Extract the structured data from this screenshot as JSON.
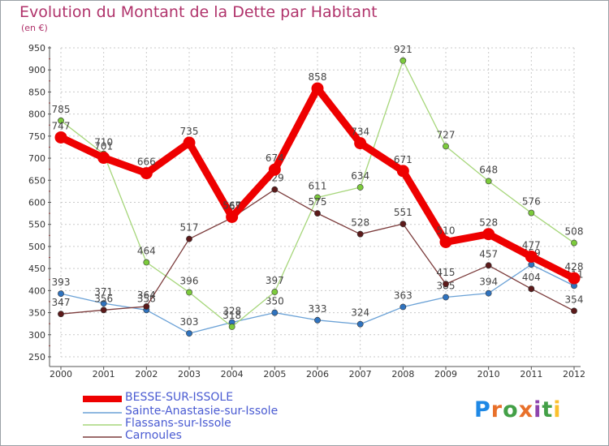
{
  "chart_data": {
    "type": "line",
    "title": "Evolution du Montant de la Dette par Habitant",
    "subtitle": "(en €)",
    "x": [
      "2000",
      "2001",
      "2002",
      "2003",
      "2004",
      "2005",
      "2006",
      "2007",
      "2008",
      "2009",
      "2010",
      "2011",
      "2012"
    ],
    "ylim": [
      250,
      950
    ],
    "yticks": [
      250,
      300,
      350,
      400,
      450,
      500,
      550,
      600,
      650,
      700,
      750,
      800,
      850,
      900,
      950
    ],
    "grid": true,
    "legend_position": "bottom-left",
    "series": [
      {
        "name": "Sainte-Anastasie-sur-Issole",
        "color": "#6aa1d6",
        "marker_color": "#2f73bf",
        "values": [
          393,
          371,
          356,
          303,
          328,
          350,
          333,
          324,
          363,
          385,
          394,
          459,
          411
        ]
      },
      {
        "name": "Flassans-sur-Issole",
        "color": "#a6d67a",
        "marker_color": "#7ccb3c",
        "values": [
          785,
          710,
          464,
          396,
          318,
          397,
          611,
          634,
          921,
          727,
          648,
          576,
          508
        ]
      },
      {
        "name": "Carnoules",
        "color": "#7b3b3b",
        "marker_color": "#5c1a1a",
        "values": [
          347,
          356,
          364,
          517,
          565,
          629,
          575,
          528,
          551,
          415,
          457,
          404,
          354
        ]
      },
      {
        "name": "BESSE-SUR-ISSOLE",
        "color": "#ee0000",
        "marker_color": "#ee0000",
        "values": [
          747,
          701,
          666,
          735,
          567,
          674,
          858,
          734,
          671,
          510,
          528,
          477,
          428
        ]
      }
    ]
  },
  "legend": [
    {
      "label": "BESSE-SUR-ISSOLE",
      "color": "#ee0000"
    },
    {
      "label": "Sainte-Anastasie-sur-Issole",
      "color": "#6aa1d6"
    },
    {
      "label": "Flassans-sur-Issole",
      "color": "#a6d67a"
    },
    {
      "label": "Carnoules",
      "color": "#7b3b3b"
    }
  ],
  "logo": {
    "text": "Proxiti",
    "letters": [
      "P",
      "r",
      "o",
      "x",
      "i",
      "t",
      "i"
    ],
    "colors": [
      "#1e88e5",
      "#e8702a",
      "#43a047",
      "#e8702a",
      "#8e44ad",
      "#43a047",
      "#fbc02d"
    ]
  }
}
